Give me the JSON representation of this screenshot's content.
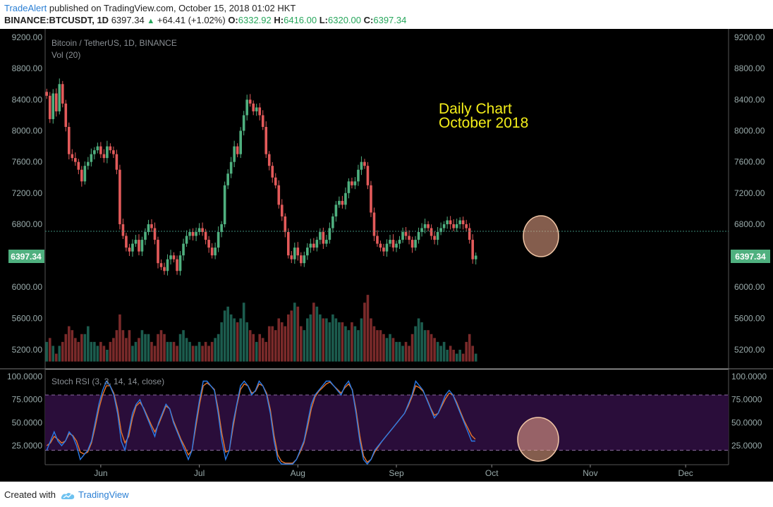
{
  "header": {
    "author": "TradeAlert",
    "published_text": "published on TradingView.com, October 15, 2018 01:02 HKT",
    "symbol": "BINANCE:BTCUSDT, 1D",
    "last": "6397.34",
    "change": "+64.41 (+1.02%)",
    "o_label": "O:",
    "o_value": "6332.92",
    "h_label": "H:",
    "h_value": "6416.00",
    "l_label": "L:",
    "l_value": "6320.00",
    "c_label": "C:",
    "c_value": "6397.34"
  },
  "footer": {
    "created_with": "Created with",
    "brand": "TradingView"
  },
  "chart_data": {
    "type": "candlestick",
    "title": "Bitcoin / TetherUS, 1D, BINANCE",
    "volume_label": "Vol (20)",
    "annotation_line1": "Daily Chart",
    "annotation_line2": "October 2018",
    "last_price_label": "6397.34",
    "last_price": 6397.34,
    "price_axis_ticks": [
      "9200.00",
      "8800.00",
      "8400.00",
      "8000.00",
      "7600.00",
      "7200.00",
      "6800.00",
      "6000.00",
      "5600.00",
      "5200.00"
    ],
    "price_tick_values": [
      9200,
      8800,
      8400,
      8000,
      7600,
      7200,
      6800,
      6000,
      5600,
      5200
    ],
    "x_ticks": [
      "Jun",
      "Jul",
      "Aug",
      "Sep",
      "Oct",
      "Nov",
      "Dec"
    ],
    "x_tick_day_index": [
      17,
      48,
      79,
      110,
      140,
      171,
      201
    ],
    "close_series": [
      8450,
      8150,
      8480,
      8250,
      8600,
      8350,
      8050,
      7700,
      7650,
      7600,
      7500,
      7350,
      7550,
      7600,
      7700,
      7750,
      7800,
      7700,
      7650,
      7800,
      7750,
      7700,
      7500,
      6800,
      6650,
      6500,
      6450,
      6550,
      6600,
      6450,
      6600,
      6700,
      6800,
      6750,
      6600,
      6300,
      6250,
      6200,
      6350,
      6400,
      6350,
      6200,
      6400,
      6550,
      6650,
      6700,
      6650,
      6700,
      6750,
      6700,
      6600,
      6500,
      6400,
      6500,
      6700,
      6800,
      7300,
      7450,
      7600,
      7800,
      7700,
      8000,
      8200,
      8400,
      8350,
      8250,
      8300,
      8200,
      8050,
      7700,
      7550,
      7400,
      7300,
      7050,
      6900,
      6700,
      6400,
      6350,
      6500,
      6400,
      6300,
      6400,
      6500,
      6550,
      6500,
      6600,
      6700,
      6550,
      6600,
      6750,
      6900,
      7050,
      7100,
      7050,
      7200,
      7350,
      7300,
      7350,
      7500,
      7600,
      7550,
      7300,
      6950,
      6650,
      6550,
      6500,
      6450,
      6550,
      6600,
      6500,
      6550,
      6600,
      6700,
      6650,
      6600,
      6500,
      6600,
      6700,
      6750,
      6800,
      6750,
      6650,
      6600,
      6700,
      6750,
      6800,
      6850,
      6800,
      6750,
      6800,
      6850,
      6800,
      6750,
      6600,
      6350,
      6397
    ],
    "volume_series": [
      5300,
      5350,
      5250,
      5150,
      5250,
      5300,
      5400,
      5500,
      5450,
      5350,
      5300,
      5400,
      5400,
      5500,
      5300,
      5300,
      5250,
      5300,
      5250,
      5200,
      5300,
      5350,
      5450,
      5650,
      5450,
      5350,
      5450,
      5250,
      5300,
      5350,
      5450,
      5400,
      5400,
      5300,
      5250,
      5400,
      5450,
      5400,
      5300,
      5300,
      5300,
      5250,
      5400,
      5450,
      5350,
      5300,
      5250,
      5250,
      5300,
      5250,
      5300,
      5250,
      5300,
      5350,
      5400,
      5550,
      5700,
      5750,
      5650,
      5600,
      5550,
      5600,
      5800,
      5550,
      5450,
      5400,
      5300,
      5400,
      5350,
      5300,
      5500,
      5500,
      5450,
      5600,
      5550,
      5500,
      5650,
      5700,
      5800,
      5750,
      5500,
      5450,
      5600,
      5650,
      5800,
      5750,
      5650,
      5600,
      5600,
      5550,
      5650,
      5600,
      5550,
      5550,
      5500,
      5450,
      5550,
      5500,
      5450,
      5600,
      5800,
      5900,
      5600,
      5500,
      5450,
      5450,
      5400,
      5350,
      5400,
      5350,
      5300,
      5300,
      5250,
      5300,
      5250,
      5400,
      5500,
      5600,
      5550,
      5450,
      5450,
      5400,
      5350,
      5300,
      5250,
      5300,
      5200,
      5250,
      5200,
      5150,
      5200,
      5150,
      5300,
      5400,
      5250,
      5150
    ],
    "rsi_label": "Stoch RSI (3, 3, 14, 14, close)",
    "rsi_axis_ticks": [
      "100.0000",
      "75.0000",
      "50.0000",
      "25.0000"
    ],
    "rsi_tick_values": [
      100,
      75,
      50,
      25
    ],
    "rsi_band": [
      20,
      80
    ],
    "rsi_k": [
      20,
      30,
      40,
      30,
      25,
      30,
      40,
      35,
      25,
      10,
      15,
      20,
      30,
      50,
      70,
      85,
      95,
      90,
      80,
      60,
      30,
      20,
      40,
      60,
      70,
      75,
      65,
      55,
      45,
      35,
      50,
      60,
      70,
      65,
      50,
      40,
      30,
      20,
      10,
      20,
      50,
      75,
      95,
      95,
      90,
      85,
      60,
      30,
      10,
      20,
      50,
      70,
      90,
      95,
      90,
      80,
      85,
      95,
      90,
      80,
      60,
      30,
      10,
      5,
      5,
      5,
      5,
      10,
      20,
      30,
      50,
      70,
      80,
      85,
      90,
      95,
      95,
      90,
      85,
      80,
      90,
      95,
      85,
      60,
      30,
      10,
      5,
      10,
      20,
      25,
      30,
      35,
      40,
      45,
      50,
      55,
      60,
      70,
      80,
      95,
      90,
      85,
      75,
      65,
      55,
      60,
      70,
      80,
      85,
      80,
      70,
      60,
      50,
      40,
      30,
      30
    ],
    "rsi_d": [
      25,
      28,
      35,
      32,
      28,
      30,
      38,
      36,
      30,
      18,
      16,
      18,
      28,
      45,
      65,
      80,
      90,
      90,
      82,
      65,
      40,
      28,
      35,
      55,
      68,
      72,
      66,
      57,
      48,
      40,
      48,
      58,
      68,
      65,
      52,
      42,
      32,
      24,
      15,
      20,
      45,
      70,
      90,
      93,
      90,
      86,
      65,
      38,
      18,
      20,
      45,
      68,
      86,
      92,
      90,
      82,
      84,
      92,
      90,
      82,
      64,
      36,
      15,
      8,
      6,
      6,
      6,
      10,
      18,
      28,
      45,
      65,
      78,
      84,
      88,
      92,
      94,
      90,
      86,
      82,
      88,
      92,
      86,
      64,
      36,
      14,
      7,
      10,
      18,
      24,
      30,
      35,
      40,
      45,
      50,
      55,
      60,
      68,
      78,
      90,
      88,
      84,
      76,
      66,
      58,
      60,
      68,
      76,
      82,
      80,
      72,
      62,
      52,
      44,
      36,
      32
    ]
  }
}
